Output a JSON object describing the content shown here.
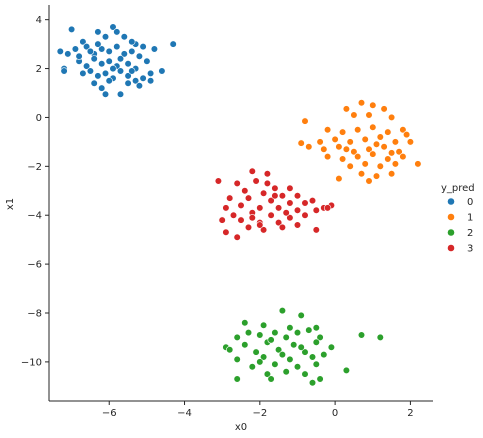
{
  "chart_data": {
    "type": "scatter",
    "xlabel": "x0",
    "ylabel": "x1",
    "xlim": [
      -7.6,
      2.6
    ],
    "ylim": [
      -11.6,
      4.6
    ],
    "x_ticks": [
      -6,
      -4,
      -2,
      0,
      2
    ],
    "y_ticks": [
      -10,
      -8,
      -6,
      -4,
      -2,
      0,
      2,
      4
    ],
    "x_tick_labels": [
      "−6",
      "−4",
      "−2",
      "0",
      "2"
    ],
    "y_tick_labels": [
      "−10",
      "−8",
      "−6",
      "−4",
      "−2",
      "0",
      "2",
      "4"
    ],
    "grid": false,
    "legend_title": "y_pred",
    "legend_position": "right",
    "series": [
      {
        "name": "0",
        "color": "#1f77b4",
        "center": [
          -6.0,
          2.3
        ],
        "points": [
          [
            -7.0,
            3.6
          ],
          [
            -6.7,
            3.1
          ],
          [
            -6.3,
            3.5
          ],
          [
            -6.1,
            3.3
          ],
          [
            -5.9,
            3.7
          ],
          [
            -5.8,
            3.5
          ],
          [
            -5.6,
            3.3
          ],
          [
            -5.3,
            3.0
          ],
          [
            -4.8,
            2.8
          ],
          [
            -4.3,
            3.0
          ],
          [
            -7.3,
            2.7
          ],
          [
            -7.1,
            2.6
          ],
          [
            -6.9,
            2.8
          ],
          [
            -6.6,
            2.9
          ],
          [
            -6.4,
            2.6
          ],
          [
            -6.2,
            2.8
          ],
          [
            -6.0,
            2.7
          ],
          [
            -5.8,
            2.9
          ],
          [
            -5.6,
            2.6
          ],
          [
            -5.4,
            2.7
          ],
          [
            -5.2,
            2.5
          ],
          [
            -5.0,
            2.3
          ],
          [
            -6.8,
            2.3
          ],
          [
            -6.6,
            2.1
          ],
          [
            -6.4,
            2.4
          ],
          [
            -6.2,
            2.2
          ],
          [
            -6.0,
            2.3
          ],
          [
            -5.8,
            2.1
          ],
          [
            -5.7,
            2.4
          ],
          [
            -5.5,
            2.2
          ],
          [
            -5.3,
            2.0
          ],
          [
            -7.2,
            2.0
          ],
          [
            -7.2,
            1.9
          ],
          [
            -6.7,
            1.8
          ],
          [
            -6.5,
            1.9
          ],
          [
            -6.3,
            1.7
          ],
          [
            -6.1,
            1.8
          ],
          [
            -5.9,
            1.6
          ],
          [
            -5.7,
            1.9
          ],
          [
            -5.5,
            1.7
          ],
          [
            -5.3,
            1.5
          ],
          [
            -5.1,
            1.6
          ],
          [
            -4.9,
            1.8
          ],
          [
            -4.6,
            1.9
          ],
          [
            -6.4,
            1.4
          ],
          [
            -6.2,
            1.2
          ],
          [
            -6.0,
            1.5
          ],
          [
            -5.5,
            1.4
          ],
          [
            -5.2,
            1.3
          ],
          [
            -4.9,
            1.5
          ],
          [
            -6.1,
            0.95
          ],
          [
            -5.7,
            0.95
          ],
          [
            -5.1,
            2.9
          ],
          [
            -5.4,
            3.1
          ],
          [
            -6.3,
            3.0
          ],
          [
            -6.8,
            2.5
          ],
          [
            -5.9,
            2.0
          ],
          [
            -5.4,
            1.9
          ],
          [
            -6.5,
            2.7
          ]
        ]
      },
      {
        "name": "1",
        "color": "#ff7f0e",
        "center": [
          1.0,
          -1.3
        ],
        "points": [
          [
            0.3,
            0.35
          ],
          [
            0.7,
            0.6
          ],
          [
            1.0,
            0.5
          ],
          [
            1.3,
            0.35
          ],
          [
            0.5,
            0.1
          ],
          [
            0.9,
            0.1
          ],
          [
            1.5,
            0.0
          ],
          [
            -0.8,
            -0.15
          ],
          [
            -0.2,
            -0.5
          ],
          [
            0.2,
            -0.6
          ],
          [
            0.6,
            -0.5
          ],
          [
            1.0,
            -0.4
          ],
          [
            1.4,
            -0.6
          ],
          [
            1.8,
            -0.5
          ],
          [
            1.9,
            -0.7
          ],
          [
            -0.4,
            -1.0
          ],
          [
            0.0,
            -0.9
          ],
          [
            0.4,
            -1.0
          ],
          [
            0.8,
            -0.9
          ],
          [
            1.2,
            -0.8
          ],
          [
            1.6,
            -1.0
          ],
          [
            2.0,
            -1.0
          ],
          [
            -0.7,
            -1.2
          ],
          [
            -0.3,
            -1.3
          ],
          [
            0.1,
            -1.2
          ],
          [
            0.5,
            -1.4
          ],
          [
            0.9,
            -1.3
          ],
          [
            1.3,
            -1.2
          ],
          [
            1.7,
            -1.4
          ],
          [
            -0.2,
            -1.6
          ],
          [
            0.2,
            -1.7
          ],
          [
            0.6,
            -1.6
          ],
          [
            1.0,
            -1.5
          ],
          [
            1.4,
            -1.7
          ],
          [
            1.8,
            -1.6
          ],
          [
            0.4,
            -2.0
          ],
          [
            0.8,
            -1.9
          ],
          [
            1.2,
            -2.0
          ],
          [
            1.6,
            -1.9
          ],
          [
            2.2,
            -1.9
          ],
          [
            0.1,
            -2.5
          ],
          [
            0.7,
            -2.3
          ],
          [
            1.1,
            -2.4
          ],
          [
            1.5,
            -2.3
          ],
          [
            0.9,
            -2.6
          ],
          [
            -0.9,
            -1.05
          ],
          [
            1.1,
            -1.1
          ],
          [
            0.3,
            -1.3
          ],
          [
            1.5,
            -1.45
          ]
        ]
      },
      {
        "name": "2",
        "color": "#2ca02c",
        "center": [
          -1.5,
          -9.4
        ],
        "points": [
          [
            -1.4,
            -7.9
          ],
          [
            -0.9,
            -8.1
          ],
          [
            -2.4,
            -8.4
          ],
          [
            -1.9,
            -8.5
          ],
          [
            -1.2,
            -8.6
          ],
          [
            -0.5,
            -8.6
          ],
          [
            -2.3,
            -8.8
          ],
          [
            -1.6,
            -8.8
          ],
          [
            -0.7,
            -8.7
          ],
          [
            -1.0,
            -8.8
          ],
          [
            -2.6,
            -9.0
          ],
          [
            -2.0,
            -8.9
          ],
          [
            -1.3,
            -9.0
          ],
          [
            -0.4,
            -9.0
          ],
          [
            0.7,
            -8.9
          ],
          [
            1.2,
            -9.0
          ],
          [
            -2.9,
            -9.4
          ],
          [
            -2.4,
            -9.3
          ],
          [
            -1.8,
            -9.2
          ],
          [
            -1.1,
            -9.3
          ],
          [
            -0.5,
            -9.2
          ],
          [
            -0.1,
            -9.4
          ],
          [
            -2.1,
            -9.6
          ],
          [
            -1.5,
            -9.5
          ],
          [
            -0.8,
            -9.6
          ],
          [
            -0.3,
            -9.7
          ],
          [
            -2.6,
            -9.9
          ],
          [
            -1.9,
            -9.8
          ],
          [
            -1.2,
            -9.9
          ],
          [
            -0.6,
            -9.8
          ],
          [
            -2.2,
            -10.2
          ],
          [
            -1.6,
            -10.1
          ],
          [
            -1.0,
            -10.2
          ],
          [
            -0.5,
            -10.1
          ],
          [
            0.3,
            -10.35
          ],
          [
            -1.8,
            -10.5
          ],
          [
            -1.3,
            -10.4
          ],
          [
            -0.8,
            -10.5
          ],
          [
            -0.4,
            -10.7
          ],
          [
            -2.6,
            -10.7
          ],
          [
            -1.7,
            -10.7
          ],
          [
            -0.6,
            -10.85
          ],
          [
            -2.8,
            -9.5
          ],
          [
            -1.4,
            -9.7
          ],
          [
            -0.9,
            -9.4
          ],
          [
            -1.7,
            -9.1
          ],
          [
            -2.0,
            -10.0
          ]
        ]
      },
      {
        "name": "3",
        "color": "#d62728",
        "center": [
          -1.7,
          -3.8
        ],
        "points": [
          [
            -2.2,
            -2.2
          ],
          [
            -1.8,
            -2.3
          ],
          [
            -2.6,
            -2.7
          ],
          [
            -2.1,
            -2.6
          ],
          [
            -3.1,
            -2.6
          ],
          [
            -1.6,
            -2.9
          ],
          [
            -1.2,
            -2.9
          ],
          [
            -2.4,
            -3.0
          ],
          [
            -1.9,
            -3.1
          ],
          [
            -1.4,
            -3.2
          ],
          [
            -1.0,
            -3.2
          ],
          [
            -0.6,
            -3.4
          ],
          [
            -2.8,
            -3.3
          ],
          [
            -2.3,
            -3.3
          ],
          [
            -1.7,
            -3.4
          ],
          [
            -1.2,
            -3.5
          ],
          [
            -0.8,
            -3.5
          ],
          [
            -0.1,
            -3.6
          ],
          [
            -0.3,
            -3.7
          ],
          [
            -2.9,
            -3.7
          ],
          [
            -2.5,
            -3.6
          ],
          [
            -2.0,
            -3.7
          ],
          [
            -1.5,
            -3.7
          ],
          [
            -1.0,
            -3.8
          ],
          [
            -0.5,
            -3.8
          ],
          [
            -2.7,
            -4.0
          ],
          [
            -2.2,
            -3.9
          ],
          [
            -1.7,
            -4.0
          ],
          [
            -1.2,
            -4.1
          ],
          [
            -0.8,
            -4.0
          ],
          [
            -3.0,
            -4.2
          ],
          [
            -2.5,
            -4.2
          ],
          [
            -2.0,
            -4.3
          ],
          [
            -1.5,
            -4.3
          ],
          [
            -1.0,
            -4.4
          ],
          [
            -2.3,
            -4.5
          ],
          [
            -1.9,
            -4.6
          ],
          [
            -1.4,
            -4.5
          ],
          [
            -0.5,
            -4.6
          ],
          [
            -2.9,
            -4.7
          ],
          [
            -2.6,
            -4.9
          ],
          [
            -2.2,
            -4.1
          ],
          [
            -1.6,
            -3.2
          ],
          [
            -0.2,
            -3.7
          ],
          [
            -2.0,
            -4.4
          ],
          [
            -1.8,
            -2.7
          ],
          [
            -1.3,
            -3.9
          ]
        ]
      }
    ]
  }
}
